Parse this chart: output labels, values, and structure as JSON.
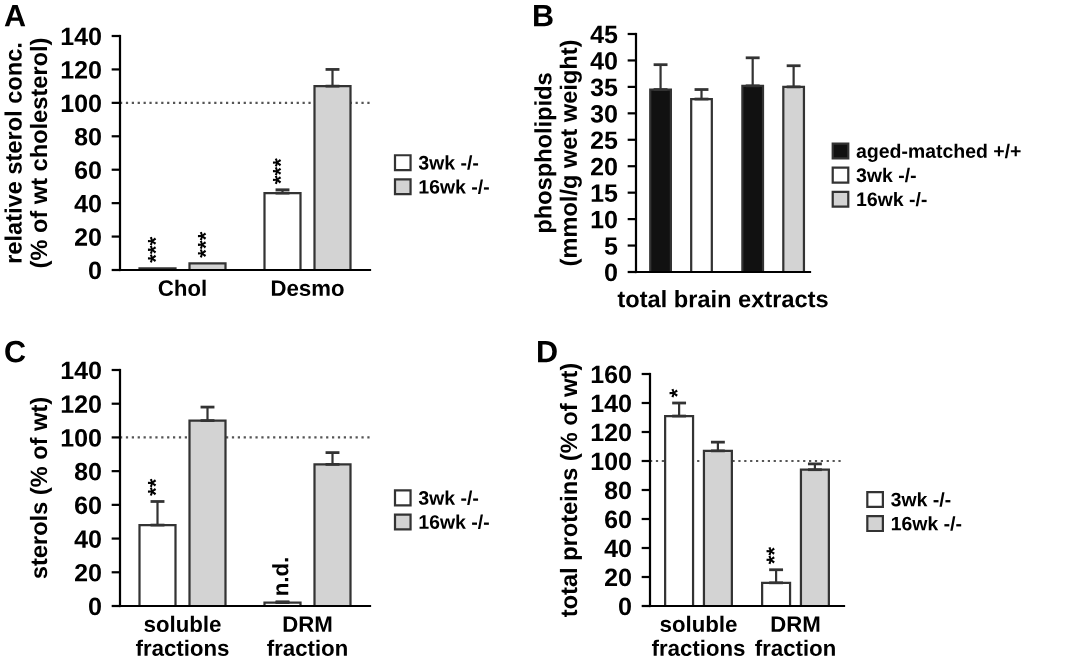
{
  "chart_data": [
    {
      "type": "bar",
      "title": "A",
      "ylabel": "relative sterol conc.\n(% of wt cholesterol)",
      "categories": [
        "Chol",
        "Desmo"
      ],
      "ylim": [
        0,
        140
      ],
      "yticks": [
        0,
        20,
        40,
        60,
        80,
        100,
        120,
        140
      ],
      "legend": "right",
      "grid": false,
      "ref_lines": [
        {
          "axis": "y",
          "value": 100,
          "line_style": "dotted"
        }
      ],
      "series": [
        {
          "name": "3wk -/-",
          "color": "#ffffff",
          "values": [
            1,
            46
          ],
          "errors": [
            null,
            2
          ],
          "value_labels": [
            "***",
            "***"
          ]
        },
        {
          "name": "16wk -/-",
          "color": "#d3d3d3",
          "values": [
            4,
            110
          ],
          "errors": [
            null,
            10
          ],
          "value_labels": [
            "***",
            null
          ]
        }
      ]
    },
    {
      "type": "bar",
      "title": "B",
      "ylabel": "phospholipids\n(mmol/g wet weight)",
      "xlabel": "total brain extracts",
      "categories": [
        null,
        null,
        null,
        null
      ],
      "ylim": [
        0,
        45
      ],
      "yticks": [
        0,
        5,
        10,
        15,
        20,
        25,
        30,
        35,
        40,
        45
      ],
      "legend": "right",
      "grid": false,
      "series": [
        {
          "name": "aged-matched +/+",
          "color": "#111111",
          "values": [
            34.5,
            null,
            35.2,
            null
          ],
          "errors": [
            4.7,
            null,
            5.3,
            null
          ]
        },
        {
          "name": "3wk -/-",
          "color": "#ffffff",
          "values": [
            null,
            32.7,
            null,
            null
          ],
          "errors": [
            null,
            1.8,
            null,
            null
          ]
        },
        {
          "name": "16wk -/-",
          "color": "#d3d3d3",
          "values": [
            null,
            null,
            null,
            35
          ],
          "errors": [
            null,
            null,
            null,
            4
          ]
        }
      ]
    },
    {
      "type": "bar",
      "title": "C",
      "ylabel": "sterols (% of wt)",
      "categories": [
        "soluble\nfractions",
        "DRM\nfraction"
      ],
      "ylim": [
        0,
        140
      ],
      "yticks": [
        0,
        20,
        40,
        60,
        80,
        100,
        120,
        140
      ],
      "legend": "right",
      "grid": false,
      "ref_lines": [
        {
          "axis": "y",
          "value": 100,
          "line_style": "dotted"
        }
      ],
      "series": [
        {
          "name": "3wk -/-",
          "color": "#ffffff",
          "values": [
            48,
            2
          ],
          "errors": [
            14,
            0.5
          ],
          "value_labels": [
            "**",
            "n.d."
          ]
        },
        {
          "name": "16wk -/-",
          "color": "#d3d3d3",
          "values": [
            110,
            84
          ],
          "errors": [
            8,
            7
          ]
        }
      ]
    },
    {
      "type": "bar",
      "title": "D",
      "ylabel": "total proteins (% of wt)",
      "categories": [
        "soluble\nfractions",
        "DRM\nfraction"
      ],
      "ylim": [
        0,
        160
      ],
      "yticks": [
        0,
        20,
        40,
        60,
        80,
        100,
        120,
        140,
        160
      ],
      "legend": "right",
      "grid": false,
      "ref_lines": [
        {
          "axis": "y",
          "value": 100,
          "line_style": "dotted"
        }
      ],
      "series": [
        {
          "name": "3wk -/-",
          "color": "#ffffff",
          "values": [
            131,
            16
          ],
          "errors": [
            9,
            9
          ],
          "value_labels": [
            "*",
            "**"
          ]
        },
        {
          "name": "16wk -/-",
          "color": "#d3d3d3",
          "values": [
            107,
            94
          ],
          "errors": [
            6,
            4
          ]
        }
      ]
    }
  ]
}
